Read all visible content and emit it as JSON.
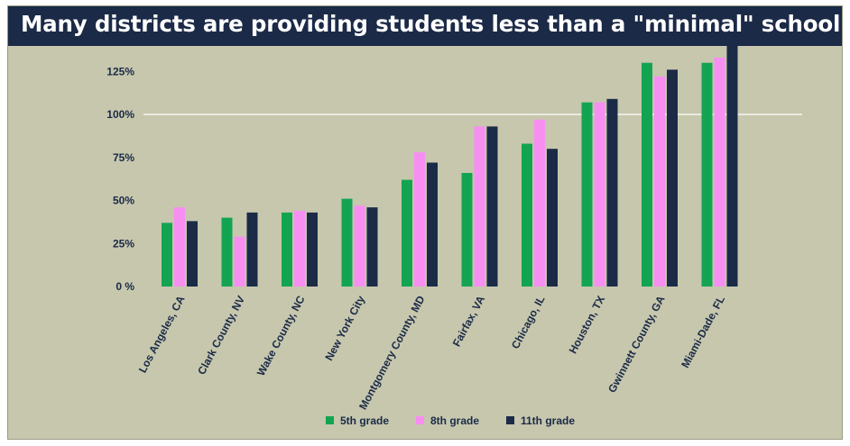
{
  "header": {
    "title": "Many districts are providing students less than a \"minimal\" school year"
  },
  "colors": {
    "background": "#c6c7ad",
    "title_bar": "#1b2a47",
    "reference_line": "#ffffff"
  },
  "chart_data": {
    "type": "bar",
    "title": "Many districts are providing students less than a \"minimal\" school year",
    "xlabel": "",
    "ylabel": "",
    "ylim": [
      0,
      1.4
    ],
    "yticks": [
      0,
      0.25,
      0.5,
      0.75,
      1.0,
      1.25
    ],
    "ytick_labels": [
      "0 %",
      "25%",
      "50%",
      "75%",
      "100%",
      "125%"
    ],
    "reference_line": 1.0,
    "grid": false,
    "legend_position": "bottom-center",
    "categories": [
      "Los Angeles, CA",
      "Clark County, NV",
      "Wake County, NC",
      "New York City",
      "Montgomery County, MD",
      "Fairfax, VA",
      "Chicago, IL",
      "Houston, TX",
      "Gwinnett County, GA",
      "Miami-Dade, FL"
    ],
    "series": [
      {
        "name": "5th grade",
        "color": "#13a452",
        "values": [
          0.37,
          0.4,
          0.43,
          0.51,
          0.62,
          0.66,
          0.83,
          1.07,
          1.3,
          1.3
        ]
      },
      {
        "name": "8th grade",
        "color": "#f78ff2",
        "values": [
          0.46,
          0.29,
          0.44,
          0.47,
          0.78,
          0.93,
          0.97,
          1.07,
          1.22,
          1.33
        ]
      },
      {
        "name": "11th grade",
        "color": "#1b2a47",
        "values": [
          0.38,
          0.43,
          0.43,
          0.46,
          0.72,
          0.93,
          0.8,
          1.09,
          1.26,
          1.4
        ]
      }
    ]
  }
}
